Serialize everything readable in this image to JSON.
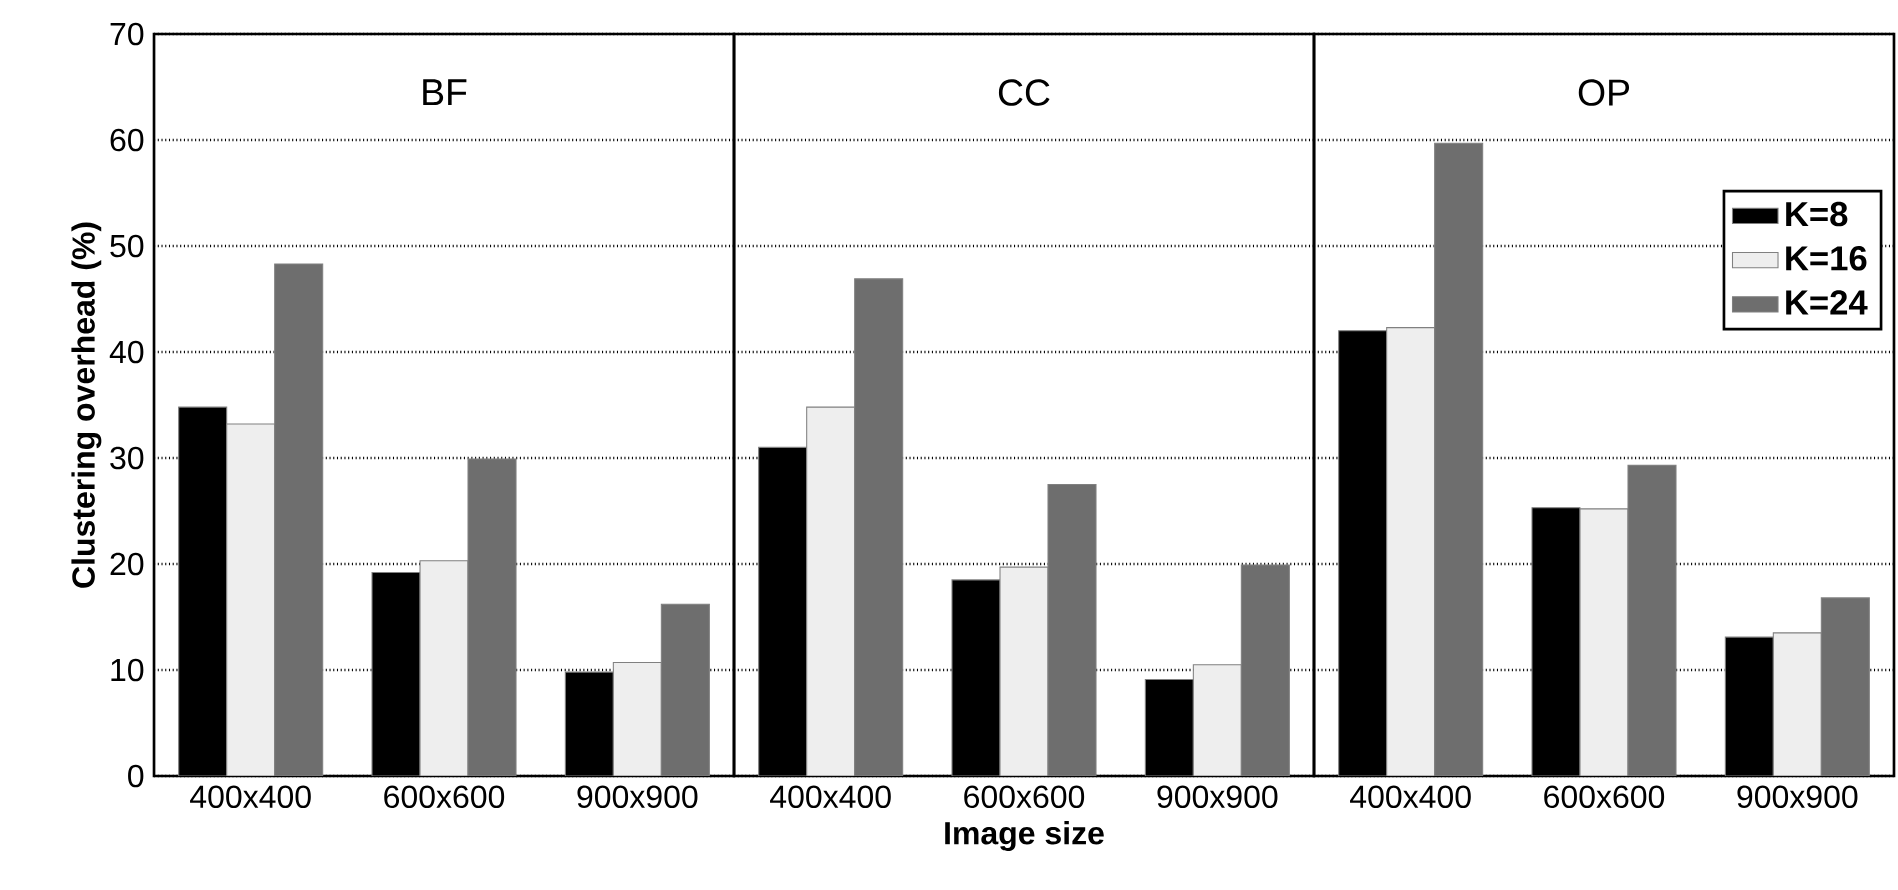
{
  "chart_data": [
    {
      "type": "bar",
      "title": "BF",
      "ylabel": "Clustering overhead (%)",
      "categories": [
        "400x400",
        "600x600",
        "900x900"
      ],
      "ylim": [
        0,
        70
      ],
      "yticks": [
        0,
        10,
        20,
        30,
        40,
        50,
        60,
        70
      ],
      "grid": "y",
      "series": [
        {
          "color": "#000000",
          "values": [
            34.8,
            19.2,
            9.8
          ]
        },
        {
          "color": "#eeeeee",
          "values": [
            33.2,
            20.3,
            10.7
          ]
        },
        {
          "color": "#6e6e6e",
          "values": [
            48.3,
            29.9,
            16.2
          ]
        }
      ]
    },
    {
      "type": "bar",
      "title": "CC",
      "xlabel": "Image size",
      "categories": [
        "400x400",
        "600x600",
        "900x900"
      ],
      "ylim": [
        0,
        70
      ],
      "yticks": [
        0,
        10,
        20,
        30,
        40,
        50,
        60,
        70
      ],
      "grid": "y",
      "tick_labels": "x",
      "series": [
        {
          "color": "#000000",
          "values": [
            31.0,
            18.5,
            9.1
          ]
        },
        {
          "color": "#eeeeee",
          "values": [
            34.8,
            19.7,
            10.5
          ]
        },
        {
          "color": "#6e6e6e",
          "values": [
            46.9,
            27.5,
            19.9
          ]
        }
      ]
    },
    {
      "type": "bar",
      "title": "OP",
      "categories": [
        "400x400",
        "600x600",
        "900x900"
      ],
      "ylim": [
        0,
        70
      ],
      "yticks": [
        0,
        10,
        20,
        30,
        40,
        50,
        60,
        70
      ],
      "grid": "y",
      "tick_labels": "x",
      "legend": "top right",
      "series": [
        {
          "name": "K=8",
          "color": "#000000",
          "values": [
            42.0,
            25.3,
            13.1
          ]
        },
        {
          "name": "K=16",
          "color": "#eeeeee",
          "values": [
            42.3,
            25.2,
            13.5
          ]
        },
        {
          "name": "K=24",
          "color": "#6e6e6e",
          "values": [
            59.7,
            29.3,
            16.8
          ]
        }
      ]
    }
  ]
}
